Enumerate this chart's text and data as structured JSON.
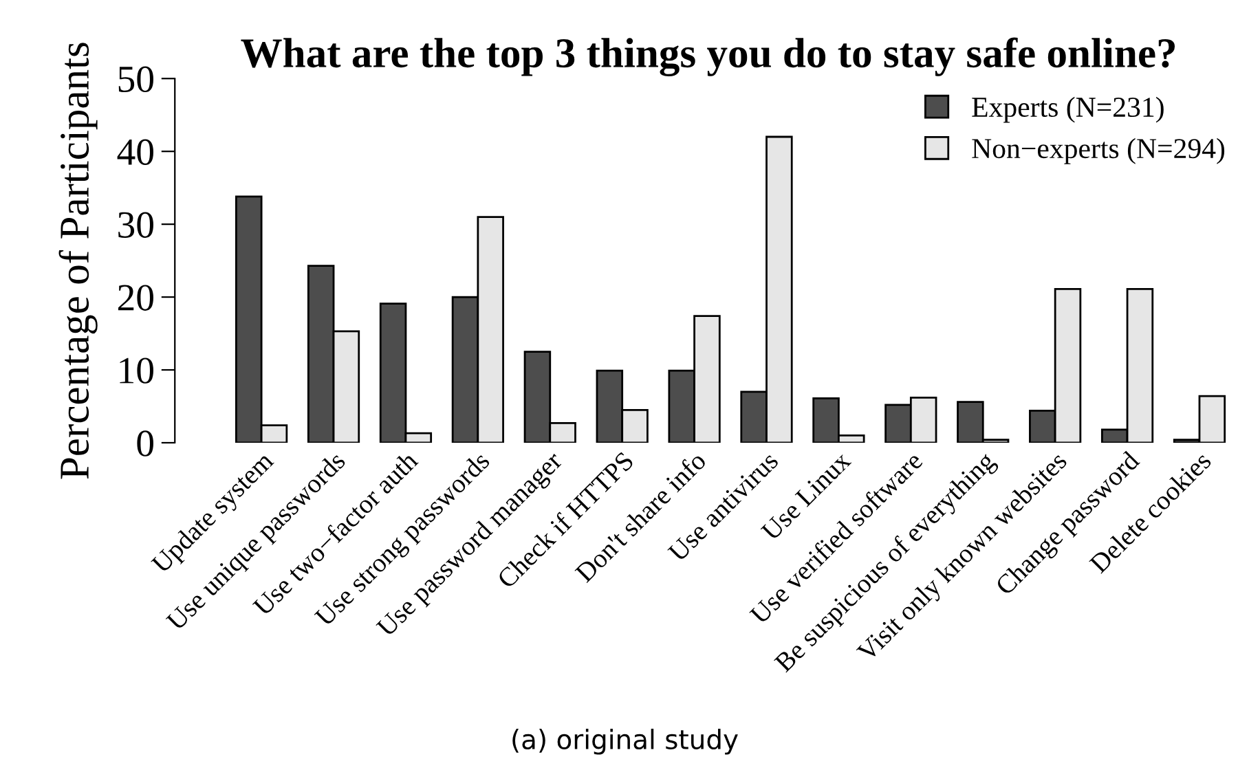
{
  "chart_data": {
    "type": "bar",
    "title": "What are the top 3 things you do to stay safe online?",
    "ylabel": "Percentage of Participants",
    "categories": [
      "Update system",
      "Use unique passwords",
      "Use two−factor auth",
      "Use strong passwords",
      "Use password manager",
      "Check if HTTPS",
      "Don't share info",
      "Use antivirus",
      "Use Linux",
      "Use verified software",
      "Be suspicious of everything",
      "Visit only known websites",
      "Change password",
      "Delete cookies"
    ],
    "series": [
      {
        "name": "Experts (N=231)",
        "color": "#4d4d4d",
        "values": [
          33.8,
          24.3,
          19.1,
          20.0,
          12.5,
          9.9,
          9.9,
          7.0,
          6.1,
          5.2,
          5.6,
          4.4,
          1.8,
          0.4
        ]
      },
      {
        "name": "Non−experts (N=294)",
        "color": "#e6e6e6",
        "values": [
          2.4,
          15.3,
          1.3,
          31.0,
          2.7,
          4.5,
          17.4,
          42.0,
          1.0,
          6.2,
          0.4,
          21.1,
          21.1,
          6.4
        ]
      }
    ],
    "ylim": [
      0,
      50
    ],
    "yticks": [
      0,
      10,
      20,
      30,
      40,
      50
    ],
    "grid": false,
    "legend": "top right",
    "annotations": [
      "(a) original study"
    ]
  }
}
